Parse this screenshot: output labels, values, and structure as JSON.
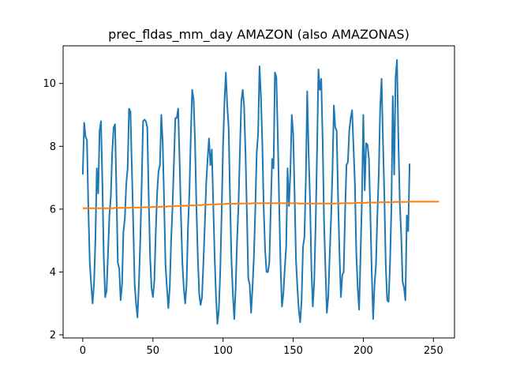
{
  "chart_data": {
    "type": "line",
    "title": "prec_fldas_mm_day AMAZON (also AMAZONAS)",
    "xlabel": "",
    "ylabel": "",
    "xlim": [
      -14,
      265
    ],
    "ylim": [
      1.9,
      11.2
    ],
    "x_ticks": [
      0,
      50,
      100,
      150,
      200,
      250
    ],
    "y_ticks": [
      2,
      4,
      6,
      8,
      10
    ],
    "grid": false,
    "legend": "none",
    "series": [
      {
        "color": "#1f77b4",
        "values": [
          7.1,
          8.75,
          8.3,
          8.2,
          6.0,
          4.3,
          3.6,
          3.0,
          3.6,
          5.0,
          7.3,
          6.5,
          8.5,
          8.8,
          6.8,
          4.4,
          3.2,
          3.4,
          4.6,
          5.8,
          6.4,
          7.8,
          8.6,
          8.7,
          6.6,
          4.3,
          4.1,
          3.1,
          3.6,
          5.3,
          5.7,
          6.8,
          7.3,
          9.2,
          9.1,
          7.3,
          5.5,
          3.6,
          3.0,
          2.55,
          3.6,
          5.0,
          6.8,
          8.8,
          8.85,
          8.8,
          8.6,
          6.4,
          4.5,
          3.5,
          3.2,
          3.7,
          5.2,
          6.5,
          7.2,
          7.4,
          9.0,
          8.1,
          6.2,
          4.2,
          3.5,
          2.85,
          3.5,
          5.0,
          6.1,
          7.5,
          8.9,
          8.9,
          9.2,
          7.6,
          5.8,
          4.3,
          3.5,
          3.0,
          3.6,
          5.4,
          6.5,
          8.3,
          9.8,
          9.5,
          8.2,
          6.1,
          4.5,
          3.3,
          2.95,
          3.2,
          4.3,
          5.5,
          6.8,
          7.6,
          8.25,
          7.4,
          7.9,
          6.2,
          4.5,
          3.2,
          2.35,
          2.8,
          4.0,
          5.9,
          8.0,
          9.4,
          10.35,
          9.3,
          8.6,
          6.3,
          4.4,
          3.3,
          2.5,
          3.5,
          5.0,
          6.1,
          7.8,
          9.4,
          9.8,
          9.3,
          7.8,
          5.9,
          3.8,
          3.6,
          2.7,
          3.5,
          4.5,
          6.0,
          7.8,
          8.4,
          10.55,
          9.6,
          8.1,
          6.0,
          4.7,
          4.0,
          4.0,
          4.3,
          6.0,
          7.6,
          7.3,
          10.35,
          10.2,
          8.4,
          6.2,
          4.2,
          2.9,
          3.3,
          4.1,
          4.8,
          7.3,
          6.1,
          7.2,
          9.0,
          8.4,
          6.5,
          4.4,
          3.5,
          2.8,
          2.4,
          3.1,
          4.8,
          5.1,
          6.9,
          9.75,
          7.8,
          6.3,
          4.1,
          2.9,
          3.7,
          5.5,
          7.8,
          10.45,
          9.8,
          10.15,
          8.2,
          5.6,
          4.1,
          2.7,
          3.2,
          4.5,
          5.7,
          7.2,
          9.3,
          8.6,
          8.5,
          6.4,
          4.6,
          3.2,
          3.9,
          4.0,
          5.9,
          7.4,
          7.5,
          8.5,
          8.9,
          9.15,
          8.0,
          6.8,
          4.6,
          3.5,
          2.8,
          4.5,
          6.3,
          9.0,
          6.6,
          8.1,
          8.05,
          7.6,
          5.9,
          4.0,
          2.5,
          3.6,
          4.2,
          5.8,
          7.1,
          9.2,
          10.15,
          8.2,
          6.4,
          4.2,
          3.1,
          3.05,
          4.2,
          6.0,
          9.6,
          7.1,
          10.2,
          10.75,
          8.2,
          6.2,
          5.2,
          3.7,
          3.5,
          3.1,
          5.8,
          5.3,
          7.45
        ]
      },
      {
        "color": "#ff7f0e",
        "values": [
          6.03,
          6.03,
          6.03,
          6.03,
          6.03,
          6.03,
          6.03,
          6.03,
          6.03,
          6.03,
          6.03,
          6.03,
          6.03,
          6.03,
          6.03,
          6.03,
          6.03,
          6.03,
          6.03,
          6.03,
          6.03,
          6.03,
          6.03,
          6.04,
          6.04,
          6.04,
          6.04,
          6.04,
          6.04,
          6.04,
          6.04,
          6.04,
          6.04,
          6.04,
          6.05,
          6.05,
          6.05,
          6.05,
          6.05,
          6.05,
          6.05,
          6.05,
          6.06,
          6.06,
          6.06,
          6.06,
          6.06,
          6.06,
          6.06,
          6.07,
          6.07,
          6.07,
          6.07,
          6.07,
          6.07,
          6.08,
          6.08,
          6.08,
          6.08,
          6.08,
          6.08,
          6.09,
          6.09,
          6.09,
          6.09,
          6.09,
          6.1,
          6.1,
          6.1,
          6.1,
          6.1,
          6.11,
          6.11,
          6.11,
          6.11,
          6.11,
          6.12,
          6.12,
          6.12,
          6.12,
          6.12,
          6.13,
          6.13,
          6.13,
          6.13,
          6.13,
          6.14,
          6.14,
          6.14,
          6.14,
          6.14,
          6.15,
          6.15,
          6.15,
          6.15,
          6.15,
          6.16,
          6.16,
          6.16,
          6.16,
          6.16,
          6.16,
          6.17,
          6.17,
          6.17,
          6.17,
          6.17,
          6.17,
          6.17,
          6.17,
          6.18,
          6.18,
          6.18,
          6.18,
          6.18,
          6.18,
          6.18,
          6.18,
          6.18,
          6.18,
          6.18,
          6.19,
          6.19,
          6.19,
          6.19,
          6.19,
          6.19,
          6.19,
          6.19,
          6.19,
          6.19,
          6.19,
          6.19,
          6.19,
          6.19,
          6.19,
          6.19,
          6.19,
          6.19,
          6.19,
          6.19,
          6.19,
          6.19,
          6.19,
          6.19,
          6.19,
          6.19,
          6.19,
          6.19,
          6.19,
          6.19,
          6.19,
          6.19,
          6.19,
          6.18,
          6.18,
          6.18,
          6.18,
          6.18,
          6.18,
          6.18,
          6.18,
          6.18,
          6.18,
          6.18,
          6.18,
          6.18,
          6.18,
          6.18,
          6.18,
          6.18,
          6.18,
          6.18,
          6.18,
          6.18,
          6.18,
          6.18,
          6.18,
          6.18,
          6.18,
          6.18,
          6.18,
          6.18,
          6.18,
          6.19,
          6.19,
          6.19,
          6.19,
          6.19,
          6.19,
          6.19,
          6.19,
          6.19,
          6.19,
          6.2,
          6.2,
          6.2,
          6.2,
          6.2,
          6.2,
          6.2,
          6.2,
          6.2,
          6.21,
          6.21,
          6.21,
          6.21,
          6.21,
          6.21,
          6.21,
          6.21,
          6.21,
          6.22,
          6.22,
          6.22,
          6.22,
          6.22,
          6.22,
          6.22,
          6.22,
          6.22,
          6.22,
          6.23,
          6.23,
          6.23,
          6.23,
          6.23,
          6.23,
          6.23,
          6.23,
          6.23,
          6.23,
          6.23,
          6.24,
          6.24,
          6.24,
          6.24,
          6.24,
          6.24,
          6.24,
          6.24,
          6.24,
          6.24,
          6.24,
          6.24,
          6.24,
          6.24,
          6.24,
          6.24,
          6.24,
          6.24,
          6.24,
          6.24,
          6.24,
          6.24
        ]
      }
    ]
  }
}
